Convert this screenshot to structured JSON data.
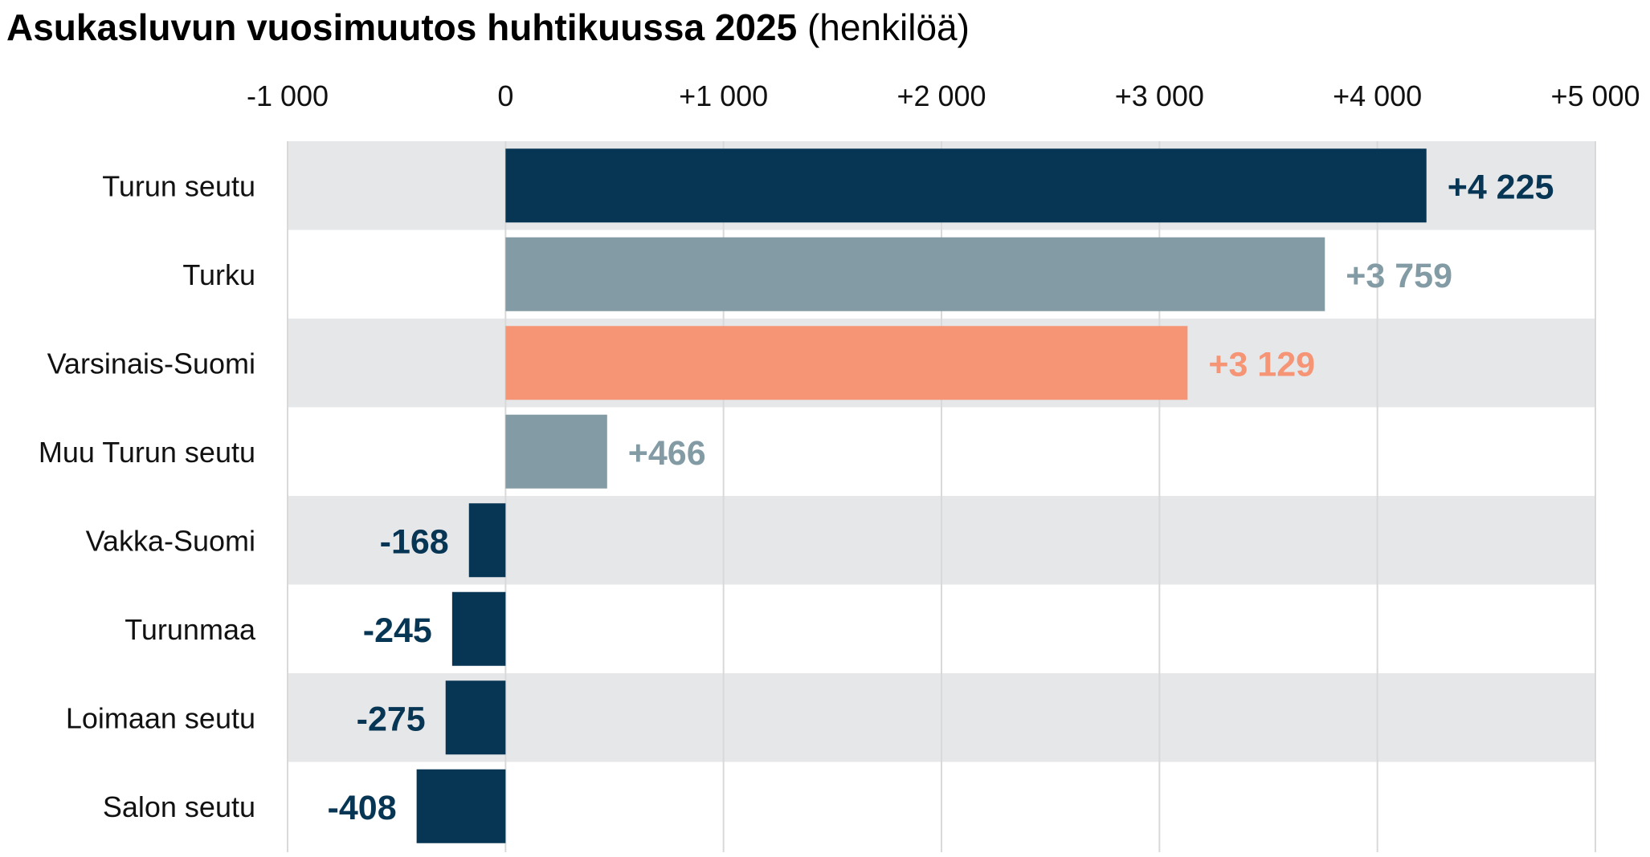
{
  "chart_data": {
    "type": "bar",
    "orientation": "horizontal",
    "title": "Asukasluvun vuosimuutos huhtikuussa 2025",
    "subtitle": "(henkilöä)",
    "categories": [
      "Turun seutu",
      "Turku",
      "Varsinais-Suomi",
      "Muu Turun seutu",
      "Vakka-Suomi",
      "Turunmaa",
      "Loimaan seutu",
      "Salon seutu"
    ],
    "values": [
      4225,
      3759,
      3129,
      466,
      -168,
      -245,
      -275,
      -408
    ],
    "value_labels": [
      "+4 225",
      "+3 759",
      "+3 129",
      "+466",
      "-168",
      "-245",
      "-275",
      "-408"
    ],
    "bar_colors": [
      "#073554",
      "#839ba4",
      "#f59576",
      "#839ba4",
      "#073554",
      "#073554",
      "#073554",
      "#073554"
    ],
    "x_ticks": [
      -1000,
      0,
      1000,
      2000,
      3000,
      4000,
      5000
    ],
    "x_tick_labels": [
      "-1 000",
      "0",
      "+1 000",
      "+2 000",
      "+3 000",
      "+4 000",
      "+5 000"
    ],
    "xlim": [
      -1000,
      5000
    ],
    "xaxis_position": "top",
    "grid": true,
    "row_banding": true,
    "band_color": "#e6e7e9",
    "grid_color": "#d9d9d9"
  }
}
